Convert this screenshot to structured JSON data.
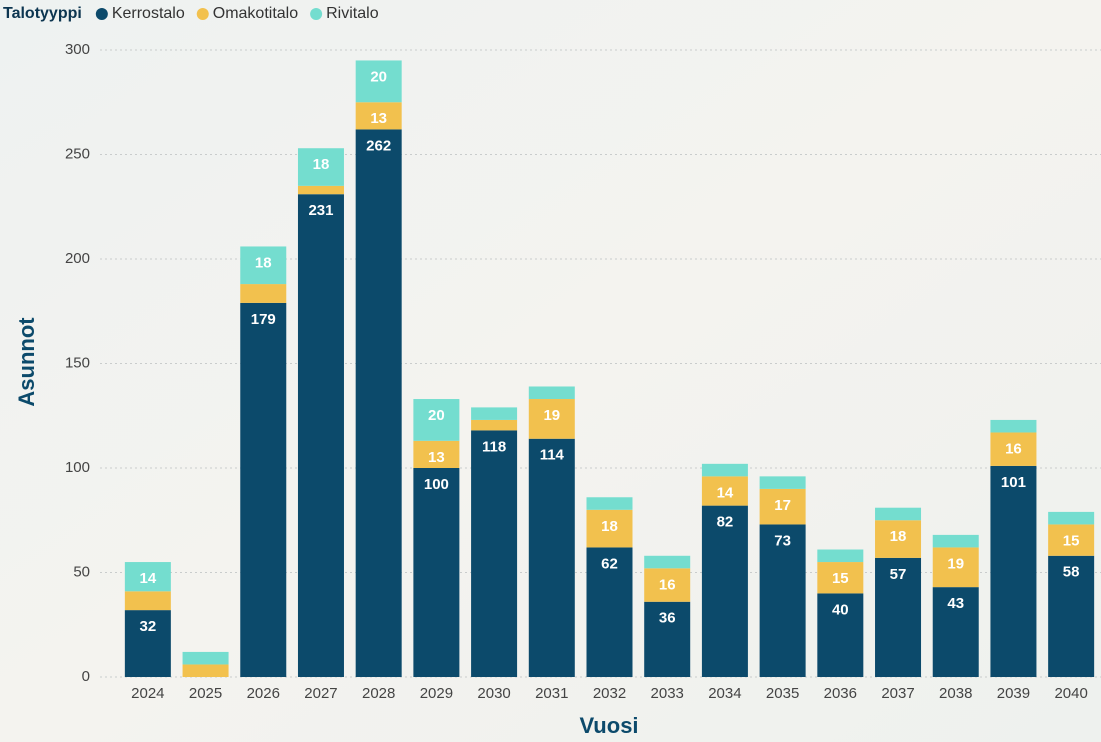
{
  "chart_data": {
    "type": "stacked_bar",
    "legend_title": "Talotyyppi",
    "x_label": "Vuosi",
    "y_label": "Asunnot",
    "categories": [
      "2024",
      "2025",
      "2026",
      "2027",
      "2028",
      "2029",
      "2030",
      "2031",
      "2032",
      "2033",
      "2034",
      "2035",
      "2036",
      "2037",
      "2038",
      "2039",
      "2040"
    ],
    "series": [
      {
        "name": "Kerrostalo",
        "color": "#0c4a6b",
        "values": [
          32,
          0,
          179,
          231,
          262,
          100,
          118,
          114,
          62,
          36,
          82,
          73,
          40,
          57,
          43,
          101,
          58
        ]
      },
      {
        "name": "Omakotitalo",
        "color": "#f2c14e",
        "values": [
          9,
          6,
          9,
          4,
          13,
          13,
          5,
          19,
          18,
          16,
          14,
          17,
          15,
          18,
          19,
          16,
          15
        ]
      },
      {
        "name": "Rivitalo",
        "color": "#74ddcf",
        "values": [
          14,
          6,
          18,
          18,
          20,
          20,
          6,
          6,
          6,
          6,
          6,
          6,
          6,
          6,
          6,
          6,
          6
        ]
      }
    ],
    "ylim": [
      0,
      300
    ],
    "yticks": [
      0,
      50,
      100,
      150,
      200,
      250,
      300
    ],
    "grid": true
  }
}
